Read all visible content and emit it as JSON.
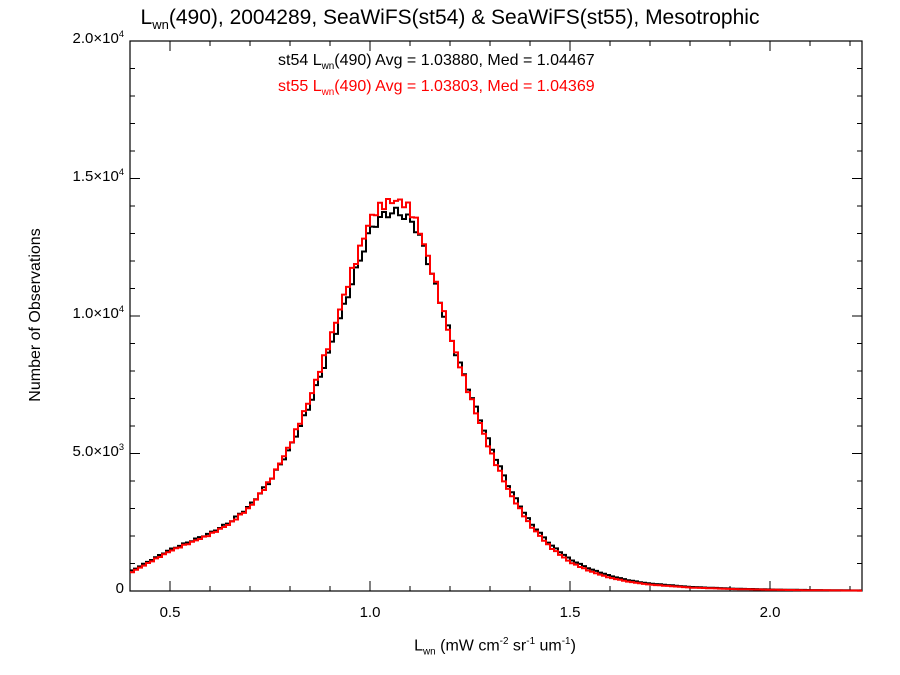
{
  "title": {
    "prefix": "L",
    "sub": "wn",
    "rest": "(490), 2004289, SeaWiFS(st54) & SeaWiFS(st55), Mesotrophic"
  },
  "legend": [
    {
      "prefix": "st54 L",
      "sub": "wn",
      "rest": "(490) Avg = 1.03880, Med = 1.04467",
      "color": "#000000"
    },
    {
      "prefix": "st55 L",
      "sub": "wn",
      "rest": "(490) Avg = 1.03803, Med = 1.04369",
      "color": "#ff0000"
    }
  ],
  "axes": {
    "xlabel": {
      "prefix": "L",
      "sub": "wn",
      "rest": " (mW cm",
      "sup1": "-2",
      "mid1": " sr",
      "sup2": "-1",
      "mid2": " um",
      "sup3": "-1",
      "end": ")"
    },
    "ylabel": "Number of Observations",
    "xticks": [
      "0.5",
      "1.0",
      "1.5",
      "2.0"
    ],
    "yticks": [
      {
        "base": "0",
        "exp": ""
      },
      {
        "base": "5.0×10",
        "exp": "3"
      },
      {
        "base": "1.0×10",
        "exp": "4"
      },
      {
        "base": "1.5×10",
        "exp": "4"
      },
      {
        "base": "2.0×10",
        "exp": "4"
      }
    ]
  },
  "chart_data": {
    "type": "line",
    "style": "step histogram",
    "xlim": [
      0.4,
      2.23
    ],
    "ylim": [
      0,
      20000
    ],
    "grid": false,
    "x": [
      0.4,
      0.45,
      0.5,
      0.55,
      0.6,
      0.65,
      0.7,
      0.75,
      0.8,
      0.85,
      0.9,
      0.95,
      1.0,
      1.02,
      1.04,
      1.06,
      1.08,
      1.1,
      1.12,
      1.15,
      1.2,
      1.25,
      1.3,
      1.35,
      1.4,
      1.45,
      1.5,
      1.55,
      1.6,
      1.65,
      1.7,
      1.8,
      1.9,
      2.0,
      2.1,
      2.23
    ],
    "series": [
      {
        "name": "st54",
        "color": "#000000",
        "values": [
          700,
          1100,
          1500,
          1800,
          2100,
          2500,
          3100,
          4000,
          5200,
          6800,
          8800,
          11000,
          13100,
          13500,
          13700,
          13800,
          13700,
          13500,
          13100,
          11800,
          9300,
          7200,
          5300,
          3700,
          2500,
          1700,
          1150,
          800,
          550,
          380,
          270,
          150,
          90,
          55,
          35,
          20
        ]
      },
      {
        "name": "st55",
        "color": "#ff0000",
        "values": [
          650,
          1050,
          1450,
          1750,
          2050,
          2450,
          3050,
          4000,
          5300,
          7000,
          9100,
          11400,
          13500,
          13900,
          14100,
          14200,
          14150,
          13900,
          13300,
          11900,
          9300,
          7100,
          5100,
          3550,
          2400,
          1600,
          1050,
          720,
          480,
          330,
          230,
          125,
          75,
          45,
          28,
          15
        ]
      }
    ]
  }
}
